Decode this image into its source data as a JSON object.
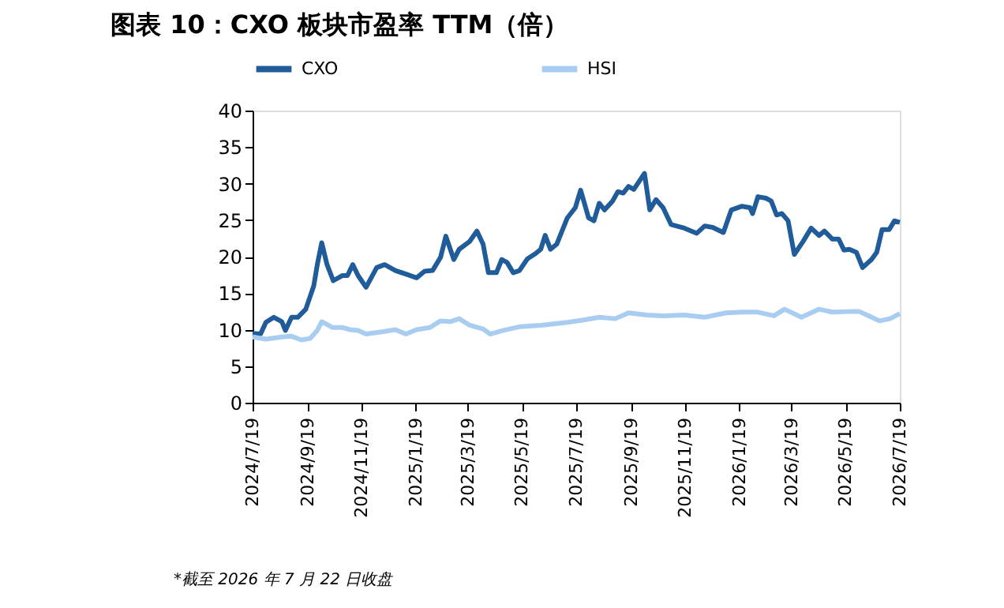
{
  "chart_data": {
    "type": "line",
    "title": "图表 10：CXO 板块市盈率 TTM（倍）",
    "annotations": [
      "*截至 2026 年 7 月 22 日收盘"
    ],
    "legend": "top",
    "grid": false,
    "marker": "none",
    "line_style": "solid",
    "ylim": [
      0,
      40
    ],
    "yticks": [
      0,
      5,
      10,
      15,
      20,
      25,
      30,
      35,
      40
    ],
    "xlim": [
      "2024-07-19",
      "2026-07-19"
    ],
    "xticks": [
      {
        "value": "2024-07-19",
        "label": "2024/7/19"
      },
      {
        "value": "2024-09-19",
        "label": "2024/9/19"
      },
      {
        "value": "2024-11-19",
        "label": "2024/11/19"
      },
      {
        "value": "2025-01-19",
        "label": "2025/1/19"
      },
      {
        "value": "2025-03-19",
        "label": "2025/3/19"
      },
      {
        "value": "2025-05-19",
        "label": "2025/5/19"
      },
      {
        "value": "2025-07-19",
        "label": "2025/7/19"
      },
      {
        "value": "2025-09-19",
        "label": "2025/9/19"
      },
      {
        "value": "2025-11-19",
        "label": "2025/11/19"
      },
      {
        "value": "2026-01-19",
        "label": "2026/1/19"
      },
      {
        "value": "2026-03-19",
        "label": "2026/3/19"
      },
      {
        "value": "2026-05-19",
        "label": "2026/5/19"
      },
      {
        "value": "2026-07-19",
        "label": "2026/7/19"
      }
    ],
    "series": [
      {
        "name": "CXO",
        "color": "#1f5c99",
        "x": [
          "2024-07-19",
          "2024-07-28",
          "2024-08-03",
          "2024-08-12",
          "2024-08-21",
          "2024-08-25",
          "2024-09-01",
          "2024-09-08",
          "2024-09-17",
          "2024-09-26",
          "2024-09-30",
          "2024-10-05",
          "2024-10-11",
          "2024-10-18",
          "2024-10-28",
          "2024-11-03",
          "2024-11-09",
          "2024-11-15",
          "2024-11-24",
          "2024-12-06",
          "2024-12-15",
          "2024-12-27",
          "2025-01-08",
          "2025-01-20",
          "2025-01-29",
          "2025-02-07",
          "2025-02-16",
          "2025-02-22",
          "2025-03-03",
          "2025-03-09",
          "2025-03-21",
          "2025-03-29",
          "2025-04-05",
          "2025-04-11",
          "2025-04-20",
          "2025-04-26",
          "2025-05-02",
          "2025-05-09",
          "2025-05-16",
          "2025-05-25",
          "2025-06-03",
          "2025-06-09",
          "2025-06-14",
          "2025-06-20",
          "2025-06-27",
          "2025-07-09",
          "2025-07-18",
          "2025-07-24",
          "2025-08-02",
          "2025-08-08",
          "2025-08-14",
          "2025-08-20",
          "2025-08-29",
          "2025-09-04",
          "2025-09-10",
          "2025-09-16",
          "2025-09-22",
          "2025-10-04",
          "2025-10-10",
          "2025-10-17",
          "2025-10-25",
          "2025-11-03",
          "2025-11-18",
          "2025-12-02",
          "2025-12-11",
          "2025-12-20",
          "2026-01-01",
          "2026-01-10",
          "2026-01-22",
          "2026-01-31",
          "2026-02-03",
          "2026-02-09",
          "2026-02-18",
          "2026-02-24",
          "2026-03-02",
          "2026-03-08",
          "2026-03-15",
          "2026-03-22",
          "2026-04-01",
          "2026-04-10",
          "2026-04-19",
          "2026-04-25",
          "2026-05-04",
          "2026-05-11",
          "2026-05-17",
          "2026-05-23",
          "2026-05-31",
          "2026-06-07",
          "2026-06-17",
          "2026-06-23",
          "2026-06-29",
          "2026-07-07",
          "2026-07-13",
          "2026-07-19"
        ],
        "values": [
          9.5,
          9.4,
          11.0,
          11.7,
          11.1,
          9.9,
          11.7,
          11.7,
          12.8,
          16.0,
          18.9,
          21.9,
          18.9,
          16.7,
          17.4,
          17.4,
          18.9,
          17.4,
          15.8,
          18.5,
          18.9,
          18.1,
          17.6,
          17.1,
          18.0,
          18.1,
          19.9,
          22.8,
          19.6,
          21.0,
          22.1,
          23.5,
          21.7,
          17.8,
          17.8,
          19.6,
          19.2,
          17.8,
          18.1,
          19.7,
          20.4,
          21.0,
          22.9,
          21.0,
          21.7,
          25.3,
          26.7,
          29.1,
          25.3,
          24.9,
          27.3,
          26.4,
          27.6,
          28.9,
          28.7,
          29.6,
          29.2,
          31.4,
          26.4,
          27.8,
          26.7,
          24.4,
          23.9,
          23.2,
          24.2,
          24.0,
          23.3,
          26.4,
          26.9,
          26.7,
          25.9,
          28.2,
          28.0,
          27.6,
          25.7,
          25.9,
          24.9,
          20.3,
          22.1,
          23.9,
          22.9,
          23.5,
          22.4,
          22.4,
          20.9,
          21.0,
          20.6,
          18.5,
          19.6,
          20.6,
          23.7,
          23.7,
          24.9,
          24.7
        ]
      },
      {
        "name": "HSI",
        "color": "#a9cdf0",
        "x": [
          "2024-07-19",
          "2024-08-03",
          "2024-08-21",
          "2024-09-01",
          "2024-09-12",
          "2024-09-22",
          "2024-09-30",
          "2024-10-05",
          "2024-10-17",
          "2024-10-28",
          "2024-11-06",
          "2024-11-15",
          "2024-11-24",
          "2024-12-12",
          "2024-12-27",
          "2025-01-08",
          "2025-01-20",
          "2025-02-04",
          "2025-02-16",
          "2025-02-27",
          "2025-03-09",
          "2025-03-21",
          "2025-04-05",
          "2025-04-13",
          "2025-04-28",
          "2025-05-16",
          "2025-06-09",
          "2025-07-09",
          "2025-07-26",
          "2025-08-14",
          "2025-09-01",
          "2025-09-16",
          "2025-10-07",
          "2025-10-25",
          "2025-11-18",
          "2025-12-11",
          "2026-01-04",
          "2026-01-22",
          "2026-02-09",
          "2026-02-27",
          "2026-03-11",
          "2026-03-30",
          "2026-04-19",
          "2026-05-04",
          "2026-05-28",
          "2026-06-03",
          "2026-06-14",
          "2026-06-26",
          "2026-07-08",
          "2026-07-19"
        ],
        "values": [
          9.0,
          8.7,
          9.0,
          9.1,
          8.6,
          8.8,
          9.9,
          11.1,
          10.3,
          10.3,
          10.0,
          9.9,
          9.4,
          9.7,
          10.0,
          9.4,
          10.0,
          10.3,
          11.2,
          11.1,
          11.5,
          10.6,
          10.1,
          9.4,
          9.9,
          10.4,
          10.6,
          11.0,
          11.3,
          11.7,
          11.5,
          12.3,
          12.0,
          11.9,
          12.0,
          11.7,
          12.3,
          12.4,
          12.4,
          11.9,
          12.8,
          11.7,
          12.8,
          12.4,
          12.5,
          12.5,
          11.9,
          11.2,
          11.5,
          12.2
        ]
      }
    ]
  }
}
